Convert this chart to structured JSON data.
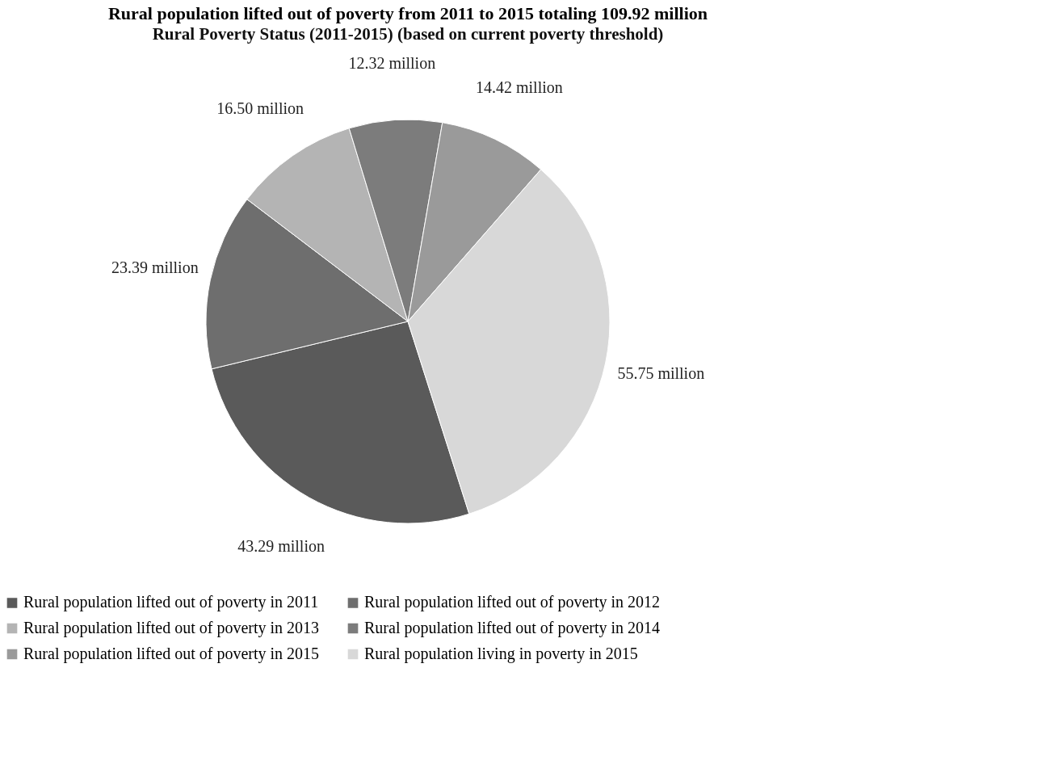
{
  "chart_data": {
    "type": "pie",
    "title": "Rural population lifted out of poverty from 2011 to 2015 totaling 109.92 million",
    "subtitle": "Rural Poverty Status (2011-2015) (based on current poverty threshold)",
    "categories": [
      "Rural population lifted out of poverty in 2011",
      "Rural population lifted out of poverty in 2012",
      "Rural population lifted out of poverty in 2013",
      "Rural population lifted out of poverty in 2014",
      "Rural population lifted out of poverty in 2015",
      "Rural population living in poverty in 2015"
    ],
    "values": [
      43.29,
      23.39,
      16.5,
      12.32,
      14.42,
      55.75
    ],
    "value_labels": [
      "43.29 million",
      "23.39 million",
      "16.50 million",
      "12.32 million",
      "14.42 million",
      "55.75 million"
    ],
    "colors": [
      "#5a5a5a",
      "#6e6e6e",
      "#b4b4b4",
      "#7c7c7c",
      "#9a9a9a",
      "#d8d8d8"
    ],
    "legend": "bottom"
  }
}
